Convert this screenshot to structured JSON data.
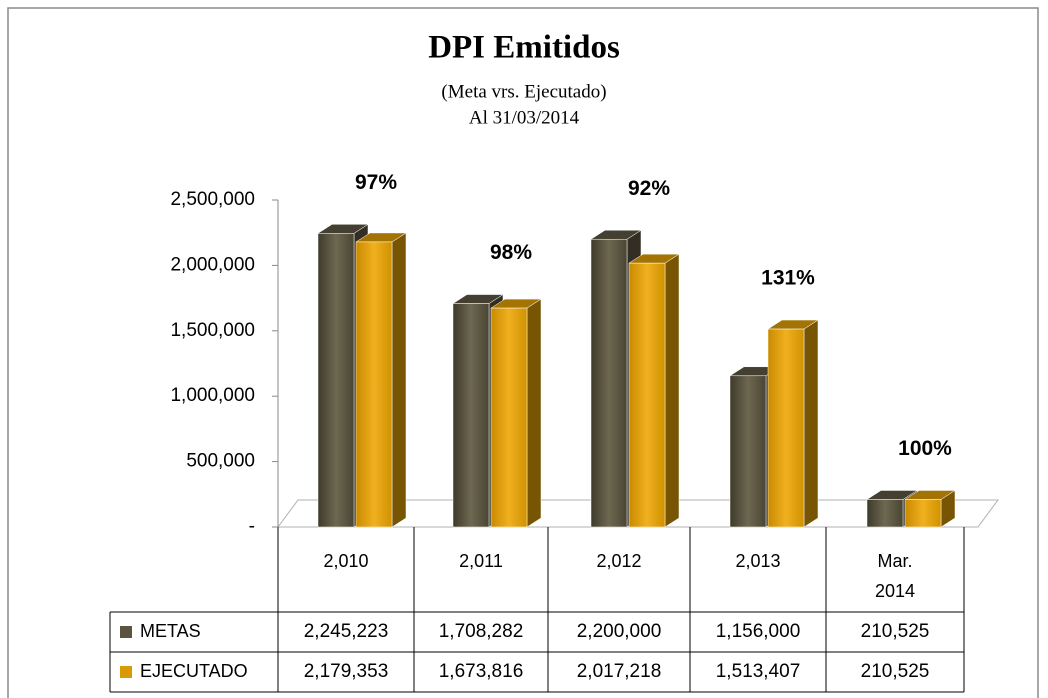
{
  "chart_data": {
    "type": "bar3d",
    "title": "DPI Emitidos",
    "subtitle": "(Meta vrs. Ejecutado)",
    "date_label": "Al 31/03/2014",
    "categories": [
      "2,010",
      "2,011",
      "2,012",
      "2,013",
      "Mar. 2014"
    ],
    "series": [
      {
        "name": "METAS",
        "color": "#5a5440",
        "values": [
          2245223,
          1708282,
          2200000,
          1156000,
          210525
        ],
        "value_labels": [
          "2,245,223",
          "1,708,282",
          "2,200,000",
          "1,156,000",
          "210,525"
        ]
      },
      {
        "name": "EJECUTADO",
        "color": "#d99b05",
        "values": [
          2179353,
          1673816,
          2017218,
          1513407,
          210525
        ],
        "value_labels": [
          "2,179,353",
          "1,673,816",
          "2,017,218",
          "1,513,407",
          "210,525"
        ]
      }
    ],
    "annotations": [
      "97%",
      "98%",
      "92%",
      "131%",
      "100%"
    ],
    "ylim": [
      0,
      2500000
    ],
    "yticks": [
      {
        "value": 0,
        "label": "-"
      },
      {
        "value": 500000,
        "label": "500,000"
      },
      {
        "value": 1000000,
        "label": "1,000,000"
      },
      {
        "value": 1500000,
        "label": "1,500,000"
      },
      {
        "value": 2000000,
        "label": "2,000,000"
      },
      {
        "value": 2500000,
        "label": "2,500,000"
      }
    ]
  }
}
